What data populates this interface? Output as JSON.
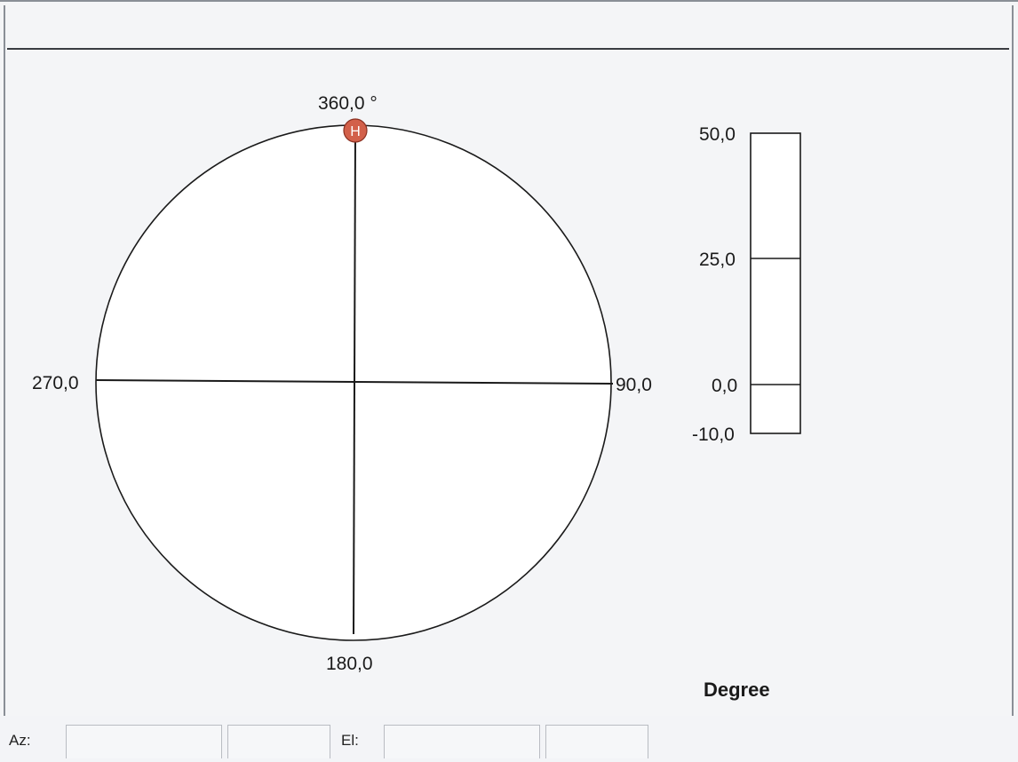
{
  "compass": {
    "north_label": "360,0 °",
    "east_label": "90,0",
    "south_label": "180,0",
    "west_label": "270,0",
    "marker_label": "H",
    "marker_azimuth_deg": 360,
    "marker_color": "#d2604a"
  },
  "elevation_scale": {
    "ticks": [
      "50,0",
      "25,0",
      "0,0",
      "-10,0"
    ],
    "unit_label": "Degree"
  },
  "statusbar": {
    "az_label": "Az:",
    "az_value": "",
    "az_value2": "",
    "el_label": "El:",
    "el_value": "",
    "el_value2": ""
  }
}
